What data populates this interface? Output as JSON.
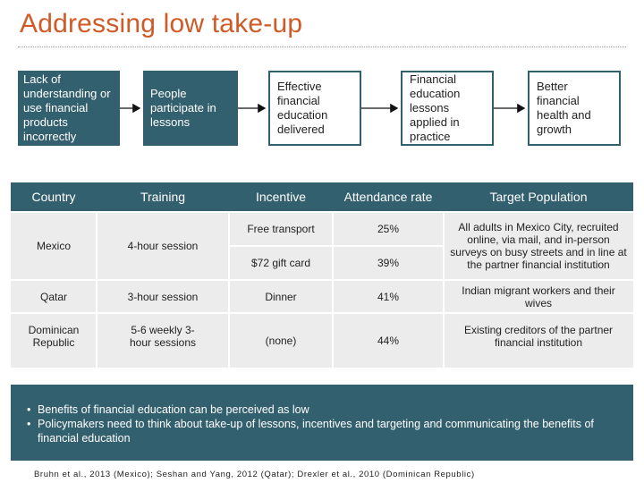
{
  "title": "Addressing low take-up",
  "flow": [
    "Lack of understanding or use financial products incorrectly",
    "People participate in lessons",
    "Effective financial education delivered",
    "Financial education lessons applied in practice",
    "Better financial health and growth"
  ],
  "table": {
    "headers": [
      "Country",
      "Training",
      "Incentive",
      "Attendance rate",
      "Target Population"
    ],
    "mexico": {
      "country": "Mexico",
      "training": "4-hour session",
      "incentive_1": "Free transport",
      "rate_1": "25%",
      "incentive_2": "$72 gift card",
      "rate_2": "39%",
      "target": "All adults in Mexico City, recruited online, via mail, and in-person surveys on busy streets and in line at the partner financial institution"
    },
    "qatar": {
      "country": "Qatar",
      "training": "3-hour session",
      "incentive": "Dinner",
      "rate": "41%",
      "target": "Indian migrant workers and their wives"
    },
    "dr": {
      "country": "Dominican Republic",
      "training": "5-6 weekly 3-hour sessions",
      "incentive": "(none)",
      "rate": "44%",
      "target": "Existing creditors of the partner financial institution"
    }
  },
  "benefits": [
    "Benefits of financial education can be perceived as low",
    "Policymakers need to think about take-up of lessons, incentives and targeting and communicating the benefits of financial education"
  ],
  "bullet_glyph": "•",
  "citation": "Bruhn et al., 2013 (Mexico); Seshan and Yang, 2012 (Qatar); Drexler et al., 2010 (Dominican Republic)",
  "colors": {
    "title": "#d05a28",
    "teal": "#33606e",
    "row_band": "#ececec"
  }
}
